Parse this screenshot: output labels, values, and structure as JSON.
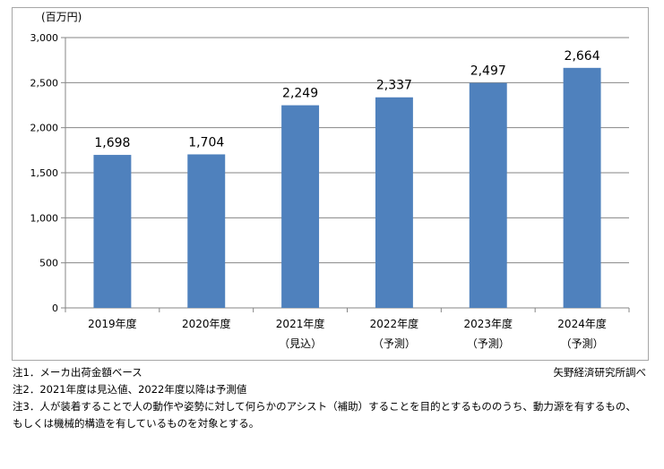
{
  "chart_data": {
    "type": "bar",
    "categories": [
      "2019年度",
      "2020年度",
      "2021年度",
      "2022年度",
      "2023年度",
      "2024年度"
    ],
    "sublabels": [
      "",
      "",
      "（見込）",
      "（予測）",
      "（予測）",
      "（予測）"
    ],
    "values": [
      1698,
      1704,
      2249,
      2337,
      2497,
      2664
    ],
    "value_labels": [
      "1,698",
      "1,704",
      "2,249",
      "2,337",
      "2,497",
      "2,664"
    ],
    "yticks": [
      "0",
      "500",
      "1,000",
      "1,500",
      "2,000",
      "2,500",
      "3,000"
    ],
    "ytick_values": [
      0,
      500,
      1000,
      1500,
      2000,
      2500,
      3000
    ],
    "ylim": [
      0,
      3000
    ],
    "ylabel": "(百万円)",
    "bar_color": "#4f81bd",
    "grid": true,
    "grid_color": "#868686",
    "legend": "none"
  },
  "notes": [
    "注1．メーカ出荷金額ベース",
    "注2．2021年度は見込値、2022年度以降は予測値",
    "注3．人が装着することで人の動作や姿勢に対して何らかのアシスト（補助）することを目的とするもののうち、動力源を有するもの、",
    "もしくは機械的構造を有しているものを対象とする。"
  ],
  "source": "矢野経済研究所調べ"
}
